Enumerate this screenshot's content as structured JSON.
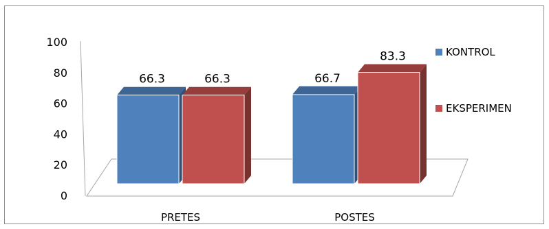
{
  "chart_data": {
    "type": "bar",
    "style": "3d-clustered-column",
    "categories": [
      "PRETES",
      "POSTES"
    ],
    "series": [
      {
        "name": "KONTROL",
        "values": [
          66.3,
          66.7
        ],
        "color": "#4F81BD"
      },
      {
        "name": "EKSPERIMEN",
        "values": [
          66.3,
          83.3
        ],
        "color": "#C0504D"
      }
    ],
    "yticks": [
      0,
      20,
      40,
      60,
      80,
      100
    ],
    "ylim": [
      0,
      100
    ],
    "legend_position": "right",
    "grid": false,
    "data_labels": true
  }
}
